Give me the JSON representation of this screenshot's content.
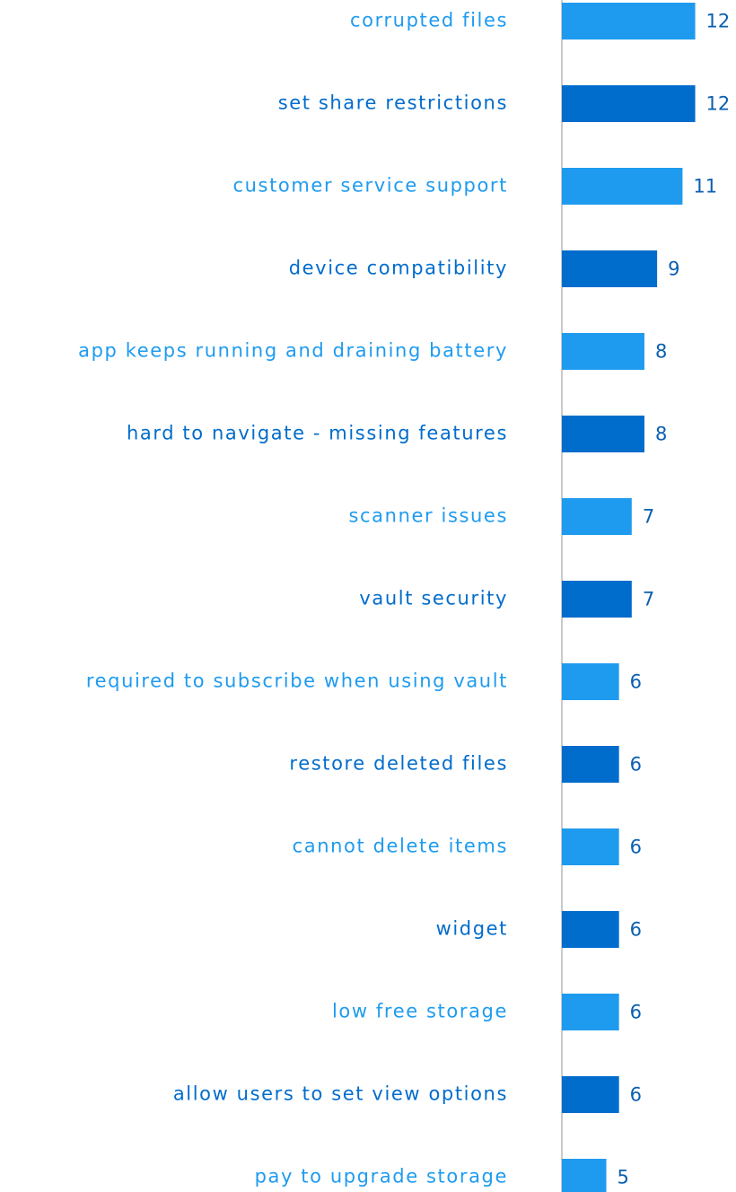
{
  "chart_data": {
    "type": "barh",
    "categories": [
      "corrupted files",
      "set share restrictions",
      "customer service support",
      "device compatibility",
      "app keeps running and draining battery",
      "hard to navigate - missing features",
      "scanner issues",
      "vault security",
      "required to subscribe when using vault",
      "restore deleted files",
      "cannot delete items",
      "widget",
      "low free storage",
      "allow users to set view options",
      "pay to upgrade storage"
    ],
    "values": [
      12,
      12,
      11,
      9,
      8,
      8,
      7,
      7,
      6,
      6,
      6,
      6,
      6,
      6,
      5
    ],
    "colors": [
      "#1e9bef",
      "#006ccc",
      "#1e9bef",
      "#006ccc",
      "#1e9bef",
      "#006ccc",
      "#1e9bef",
      "#006ccc",
      "#1e9bef",
      "#006ccc",
      "#1e9bef",
      "#006ccc",
      "#1e9bef",
      "#006ccc",
      "#1e9bef"
    ],
    "xlim": [
      1.5,
      15
    ]
  }
}
